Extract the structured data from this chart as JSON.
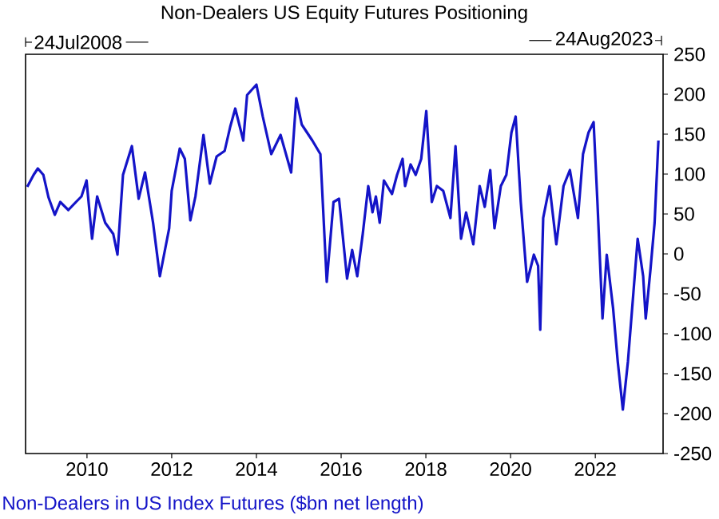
{
  "chart_data": {
    "type": "line",
    "title": "Non-Dealers US Equity Futures Positioning",
    "annotations": [
      "24Jul2008",
      "24Aug2023"
    ],
    "legend": "bottom left",
    "xlim": [
      2008.55,
      2023.6
    ],
    "xticks": [
      2010,
      2012,
      2014,
      2016,
      2018,
      2020,
      2022
    ],
    "ylim": [
      -250,
      250
    ],
    "yticks": [
      -250,
      -200,
      -150,
      -100,
      -50,
      0,
      50,
      100,
      150,
      200,
      250
    ],
    "series": [
      {
        "name": "Non-Dealers in US Index Futures ($bn net length)",
        "color": "#1414c8",
        "x": [
          2008.59,
          2008.74,
          2008.84,
          2008.97,
          2009.09,
          2009.24,
          2009.37,
          2009.56,
          2009.74,
          2009.87,
          2009.99,
          2010.12,
          2010.24,
          2010.43,
          2010.62,
          2010.72,
          2010.85,
          2011.06,
          2011.22,
          2011.37,
          2011.56,
          2011.72,
          2011.94,
          2012.0,
          2012.19,
          2012.31,
          2012.44,
          2012.56,
          2012.75,
          2012.9,
          2013.06,
          2013.25,
          2013.38,
          2013.5,
          2013.69,
          2013.78,
          2014.0,
          2014.15,
          2014.35,
          2014.57,
          2014.82,
          2014.94,
          2015.07,
          2015.32,
          2015.51,
          2015.66,
          2015.82,
          2015.95,
          2016.14,
          2016.26,
          2016.38,
          2016.51,
          2016.64,
          2016.74,
          2016.82,
          2016.91,
          2017.01,
          2017.2,
          2017.32,
          2017.45,
          2017.51,
          2017.64,
          2017.76,
          2017.89,
          2018.01,
          2018.14,
          2018.26,
          2018.41,
          2018.58,
          2018.7,
          2018.83,
          2018.95,
          2019.12,
          2019.27,
          2019.39,
          2019.52,
          2019.62,
          2019.77,
          2019.9,
          2020.02,
          2020.12,
          2020.24,
          2020.39,
          2020.55,
          2020.65,
          2020.7,
          2020.77,
          2020.92,
          2021.08,
          2021.25,
          2021.4,
          2021.59,
          2021.71,
          2021.84,
          2021.96,
          2022.05,
          2022.17,
          2022.27,
          2022.42,
          2022.53,
          2022.65,
          2022.77,
          2022.9,
          2023.0,
          2023.13,
          2023.19,
          2023.3,
          2023.4,
          2023.49
        ],
        "values": [
          84,
          99,
          107,
          99,
          71,
          49,
          65,
          55,
          65,
          72,
          92,
          19,
          72,
          39,
          25,
          -1,
          99,
          135,
          69,
          102,
          39,
          -28,
          32,
          79,
          132,
          119,
          42,
          72,
          149,
          88,
          122,
          129,
          159,
          182,
          142,
          199,
          212,
          172,
          125,
          149,
          102,
          195,
          162,
          142,
          125,
          -35,
          65,
          69,
          -31,
          5,
          -28,
          25,
          85,
          52,
          72,
          39,
          92,
          75,
          99,
          119,
          85,
          112,
          99,
          119,
          179,
          65,
          85,
          79,
          45,
          135,
          19,
          52,
          12,
          85,
          59,
          105,
          32,
          85,
          99,
          152,
          172,
          65,
          -35,
          -1,
          -15,
          -95,
          45,
          85,
          12,
          85,
          105,
          45,
          125,
          152,
          165,
          65,
          -81,
          -1,
          -68,
          -135,
          -195,
          -135,
          -48,
          19,
          -28,
          -81,
          -21,
          39,
          142
        ]
      }
    ]
  }
}
